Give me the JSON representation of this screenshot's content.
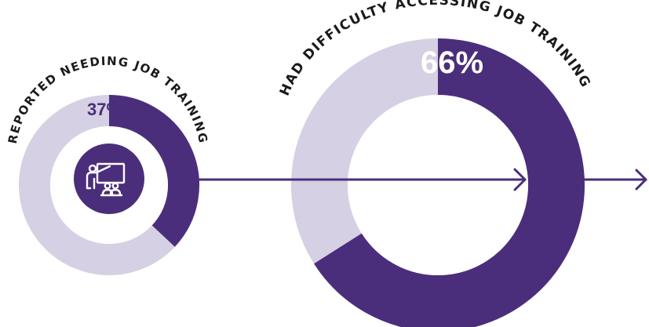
{
  "colors": {
    "accent": "#4b2e7b",
    "track": "#d5d0e3",
    "background": "#ffffff",
    "label": "#1a1a1a"
  },
  "icon": "presenter-training-icon",
  "chart_data": [
    {
      "type": "pie",
      "style": "donut",
      "title": "REPORTED NEEDING JOB TRAINING",
      "value_percent": 37,
      "value_label": "37%"
    },
    {
      "type": "pie",
      "style": "donut",
      "title": "HAD DIFFICULTY ACCESSING JOB TRAINING",
      "value_percent": 66,
      "value_label": "66%"
    }
  ]
}
